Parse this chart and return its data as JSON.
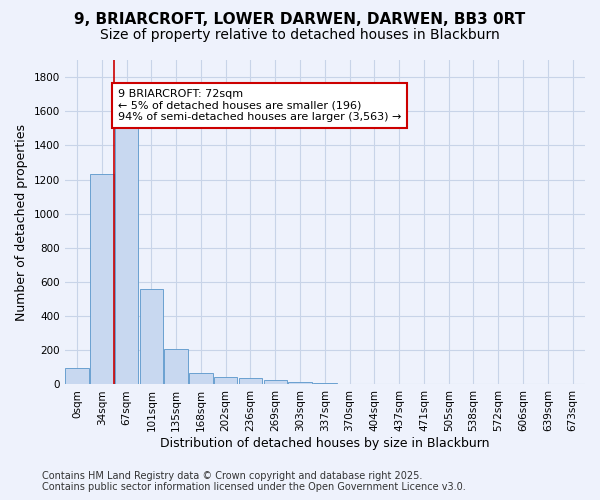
{
  "title_line1": "9, BRIARCROFT, LOWER DARWEN, DARWEN, BB3 0RT",
  "title_line2": "Size of property relative to detached houses in Blackburn",
  "xlabel": "Distribution of detached houses by size in Blackburn",
  "ylabel": "Number of detached properties",
  "bar_color": "#c8d8f0",
  "bar_edge_color": "#6aa0d0",
  "categories": [
    "0sqm",
    "34sqm",
    "67sqm",
    "101sqm",
    "135sqm",
    "168sqm",
    "202sqm",
    "236sqm",
    "269sqm",
    "303sqm",
    "337sqm",
    "370sqm",
    "404sqm",
    "437sqm",
    "471sqm",
    "505sqm",
    "538sqm",
    "572sqm",
    "606sqm",
    "639sqm",
    "673sqm"
  ],
  "values": [
    95,
    1235,
    1510,
    560,
    210,
    65,
    45,
    35,
    28,
    15,
    8,
    3,
    2,
    1,
    1,
    0,
    0,
    0,
    0,
    0,
    0
  ],
  "ylim": [
    0,
    1900
  ],
  "yticks": [
    0,
    200,
    400,
    600,
    800,
    1000,
    1200,
    1400,
    1600,
    1800
  ],
  "vline_pos": 1.5,
  "vline_color": "#cc0000",
  "annotation_text": "9 BRIARCROFT: 72sqm\n← 5% of detached houses are smaller (196)\n94% of semi-detached houses are larger (3,563) →",
  "annotation_box_color": "#ffffff",
  "annotation_box_edge": "#cc0000",
  "footer_line1": "Contains HM Land Registry data © Crown copyright and database right 2025.",
  "footer_line2": "Contains public sector information licensed under the Open Government Licence v3.0.",
  "background_color": "#eef2fc",
  "grid_color": "#c8d4e8",
  "title_fontsize": 11,
  "subtitle_fontsize": 10,
  "axis_label_fontsize": 9,
  "tick_fontsize": 7.5,
  "annotation_fontsize": 8,
  "footer_fontsize": 7
}
